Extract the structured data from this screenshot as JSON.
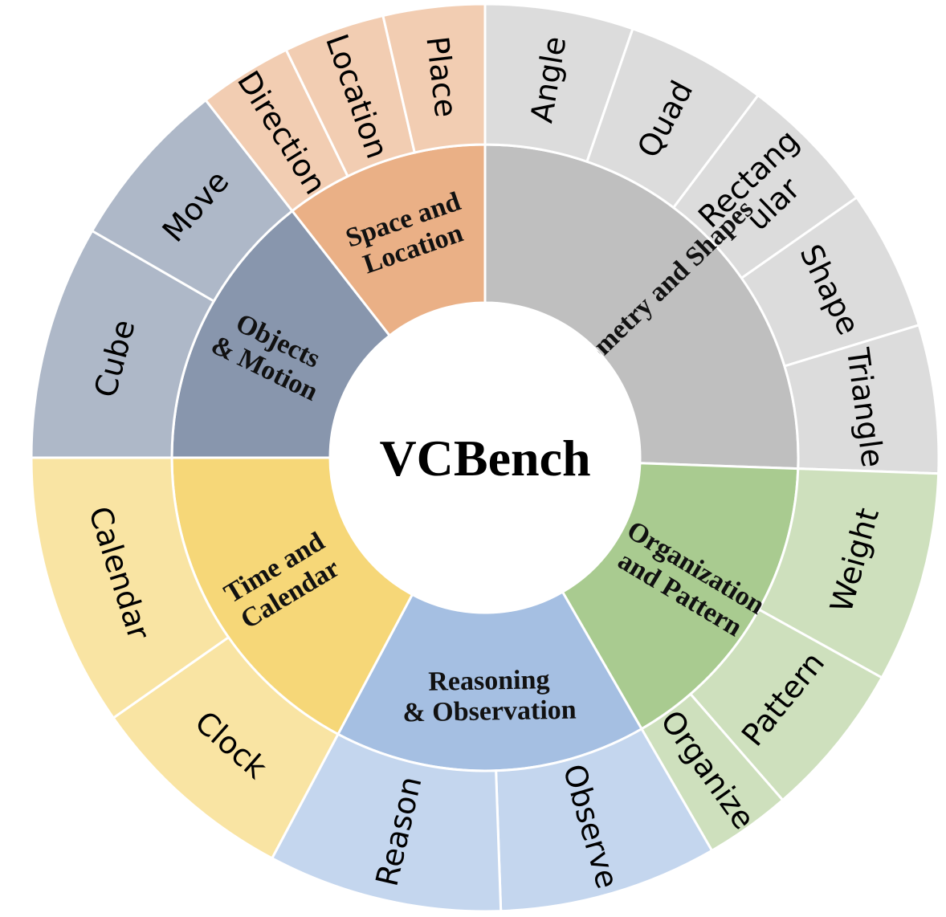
{
  "title": "VCBench",
  "colors": {
    "center": "#ffffff",
    "separator": "#ffffff"
  },
  "categories": [
    {
      "name": "Geometry and Shapes",
      "label_lines": [
        "Geometry and Shapes"
      ],
      "inner_color": "#bfbfbf",
      "outer_color": "#dcdcdc",
      "children": [
        "Angle",
        "Quad",
        "Rectang ular",
        "Shape",
        "Triangle"
      ]
    },
    {
      "name": "Organization and Pattern",
      "label_lines": [
        "Organization",
        "and Pattern"
      ],
      "inner_color": "#a9cb90",
      "outer_color": "#cee0bd",
      "children": [
        "Weight",
        "Pattern",
        "Organize"
      ]
    },
    {
      "name": "Reasoning & Observation",
      "label_lines": [
        "Reasoning",
        "& Observation"
      ],
      "inner_color": "#a5bfe2",
      "outer_color": "#c4d6ee",
      "children": [
        "Observe",
        "Reason"
      ]
    },
    {
      "name": "Time and Calendar",
      "label_lines": [
        "Time and",
        "Calendar"
      ],
      "inner_color": "#f6d778",
      "outer_color": "#f9e4a3",
      "children": [
        "Clock",
        "Calendar"
      ]
    },
    {
      "name": "Objects & Motion",
      "label_lines": [
        "Objects",
        "& Motion"
      ],
      "inner_color": "#8896ad",
      "outer_color": "#aeb8c8",
      "children": [
        "Cube",
        "Move"
      ]
    },
    {
      "name": "Space and Location",
      "label_lines": [
        "Space and",
        "Location"
      ],
      "inner_color": "#eab086",
      "outer_color": "#f2cdb2",
      "children": [
        "Direction",
        "Location",
        "Place"
      ]
    }
  ]
}
